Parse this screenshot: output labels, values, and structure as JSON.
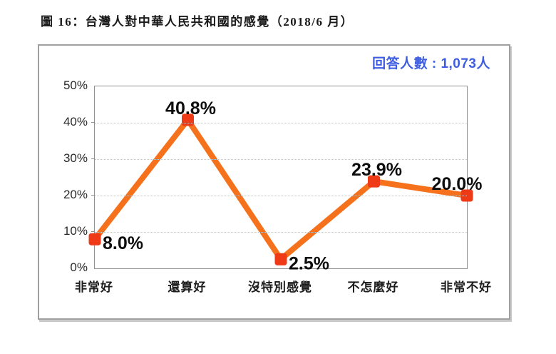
{
  "page": {
    "title": "圖 16：台灣人對中華人民共和國的感覺（2018/6 月）"
  },
  "panel": {
    "respondents_label": "回答人數 : 1,073人",
    "respondents_color": "#3d5ce0"
  },
  "chart_data": {
    "type": "line",
    "title": "",
    "xlabel": "",
    "ylabel": "",
    "categories": [
      "非常好",
      "還算好",
      "沒特別感覺",
      "不怎麼好",
      "非常不好"
    ],
    "values": [
      8.0,
      40.8,
      2.5,
      23.9,
      20.0
    ],
    "point_labels": [
      "8.0%",
      "40.8%",
      "2.5%",
      "23.9%",
      "20.0%"
    ],
    "point_label_positions": [
      "right",
      "above",
      "right",
      "above",
      "above-left"
    ],
    "ylim": [
      0,
      50
    ],
    "ytick_labels": [
      "0%",
      "10%",
      "20%",
      "30%",
      "40%",
      "50%"
    ],
    "grid": "horizontal-dotted",
    "legend": null,
    "line_color": "#f5711c",
    "marker_color": "#ee3a16",
    "marker_shape": "rounded-square",
    "label_color": "#0d0d0d"
  }
}
